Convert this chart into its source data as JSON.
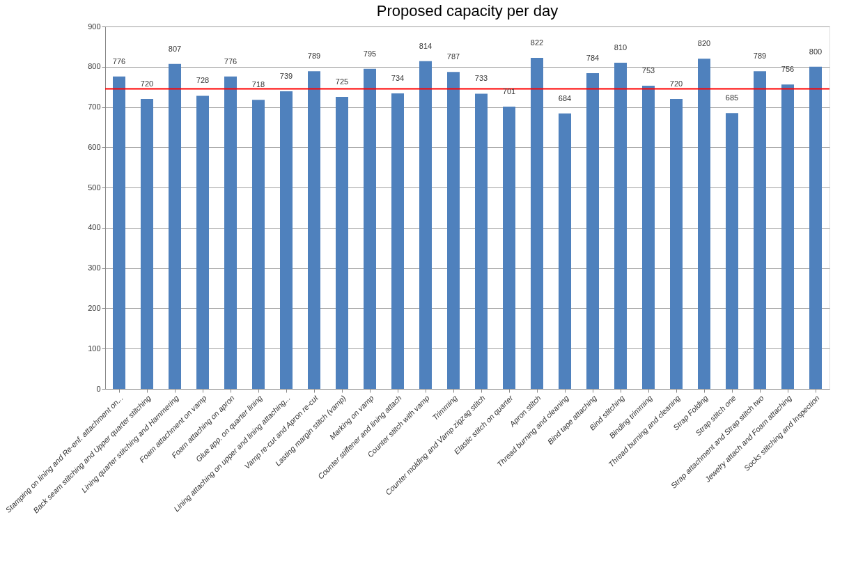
{
  "chart_data": {
    "type": "bar",
    "title": "Proposed capacity per day",
    "categories": [
      "Stamping on lining and Re-enf. attachment on...",
      "Back seam stitching and Upper quarter stitching",
      "Lining quarter stitching and Hammering",
      "Foam attachment on vamp",
      "Foam attaching on apron",
      "Glue app. on quarter lining",
      "Lining attaching on upper and lining attaching...",
      "Vamp re-cut and Apron re-cut",
      "Lasting margin stitch (vamp)",
      "Marking on vamp",
      "Counter stiffener and lining attach",
      "Counter stitch with vamp",
      "Trimming",
      "Counter molding and Vamp zigzag stitch",
      "Elastic stitch on quarter",
      "Apron stitch",
      "Thread burning and cleaning",
      "Bind tape attaching",
      "Bind stitching",
      "Binding trimming",
      "Thread burning and cleaning",
      "Strap Folding",
      "Strap stitch one",
      "Strap attachment and Strap stitch two",
      "Jewelry attach and Foam attaching",
      "Socks stitching and Inspection"
    ],
    "values": [
      776,
      720,
      807,
      728,
      776,
      718,
      739,
      789,
      725,
      795,
      734,
      814,
      787,
      733,
      701,
      822,
      684,
      784,
      810,
      753,
      720,
      820,
      685,
      789,
      756,
      800
    ],
    "color": "#4f81bd",
    "ylim": [
      0,
      900
    ],
    "yticks": [
      0,
      100,
      200,
      300,
      400,
      500,
      600,
      700,
      800,
      900
    ],
    "grid": "y",
    "data_labels": true,
    "ref_lines": [
      {
        "axis": "y",
        "value": 745,
        "color": "#ff0000"
      }
    ]
  }
}
